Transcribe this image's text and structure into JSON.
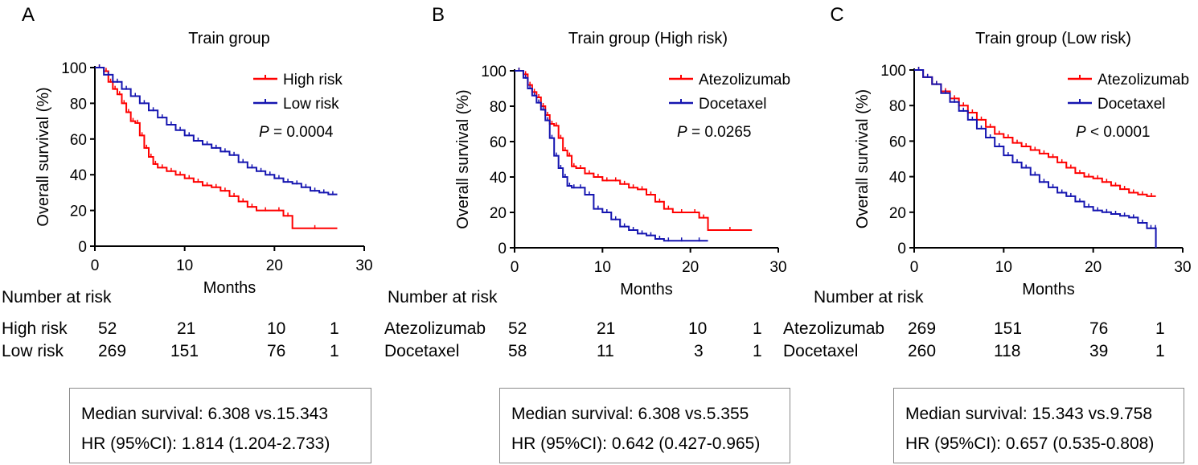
{
  "panels": [
    {
      "letter": "A",
      "chart_data": {
        "type": "line",
        "title": "Train group",
        "xlabel": "Months",
        "ylabel": "Overall survival (%)",
        "xlim": [
          0,
          30
        ],
        "ylim": [
          0,
          100
        ],
        "xticks": [
          0,
          10,
          20,
          30
        ],
        "yticks": [
          0,
          20,
          40,
          60,
          80,
          100
        ],
        "p_value": {
          "label": "P",
          "text": "= 0.0004"
        },
        "series": [
          {
            "name": "High risk",
            "color": "#ff0000",
            "x": [
              0,
              1,
              1.5,
              2,
              2.5,
              3,
              3.5,
              4,
              4.5,
              5,
              5.5,
              6,
              6.5,
              7,
              8,
              9,
              10,
              11,
              12,
              13,
              14,
              15,
              16,
              17,
              18,
              20,
              21,
              22,
              27
            ],
            "y": [
              100,
              98,
              92,
              88,
              85,
              80,
              75,
              70,
              69,
              62,
              55,
              50,
              46,
              44,
              42,
              40,
              38,
              36,
              34,
              33,
              31,
              28,
              25,
              22,
              20,
              20,
              17,
              10,
              10
            ]
          },
          {
            "name": "Low risk",
            "color": "#1515b0",
            "x": [
              0,
              1,
              2,
              3,
              4,
              5,
              6,
              7,
              8,
              9,
              10,
              11,
              12,
              13,
              14,
              15,
              16,
              17,
              18,
              19,
              20,
              21,
              22,
              23,
              24,
              25,
              26,
              27
            ],
            "y": [
              100,
              96,
              92,
              88,
              84,
              80,
              76,
              72,
              68,
              65,
              62,
              59,
              57,
              55,
              53,
              51,
              47,
              44,
              42,
              40,
              38,
              36,
              35,
              33,
              31,
              30,
              29,
              29
            ]
          }
        ]
      },
      "risk_table": {
        "heading": "Number at risk",
        "rows": [
          {
            "label": "High risk",
            "values": [
              "52",
              "21",
              "10",
              "1"
            ]
          },
          {
            "label": "Low risk",
            "values": [
              "269",
              "151",
              "76",
              "1"
            ]
          }
        ]
      },
      "summary": {
        "median": "Median survival: 6.308 vs.15.343",
        "hr": "HR (95%CI): 1.814 (1.204-2.733)"
      }
    },
    {
      "letter": "B",
      "chart_data": {
        "type": "line",
        "title": "Train group (High risk)",
        "xlabel": "Months",
        "ylabel": "Overall survival (%)",
        "xlim": [
          0,
          30
        ],
        "ylim": [
          0,
          100
        ],
        "xticks": [
          0,
          10,
          20,
          30
        ],
        "yticks": [
          0,
          20,
          40,
          60,
          80,
          100
        ],
        "p_value": {
          "label": "P",
          "text": "= 0.0265"
        },
        "series": [
          {
            "name": "Atezolizumab",
            "color": "#ff0000",
            "x": [
              0,
              1,
              1.5,
              2,
              2.5,
              3,
              3.5,
              4,
              4.5,
              5,
              5.5,
              6,
              6.5,
              7,
              8,
              9,
              10,
              11,
              12,
              13,
              14,
              15,
              16,
              17,
              18,
              20,
              21,
              22,
              27
            ],
            "y": [
              100,
              98,
              92,
              88,
              85,
              80,
              75,
              70,
              69,
              62,
              55,
              52,
              46,
              45,
              42,
              40,
              38,
              38,
              36,
              34,
              33,
              30,
              26,
              22,
              20,
              20,
              17,
              10,
              10
            ]
          },
          {
            "name": "Docetaxel",
            "color": "#1515b0",
            "x": [
              0,
              1,
              1.5,
              2,
              2.5,
              3,
              3.5,
              4,
              4.5,
              5,
              5.5,
              6,
              6.5,
              7,
              8,
              9,
              10,
              11,
              12,
              13,
              14,
              15,
              16,
              17,
              18,
              20,
              22
            ],
            "y": [
              100,
              96,
              90,
              86,
              82,
              78,
              72,
              62,
              52,
              45,
              40,
              35,
              34,
              34,
              30,
              22,
              20,
              16,
              12,
              10,
              8,
              7,
              5,
              4,
              4,
              4,
              4
            ]
          }
        ]
      },
      "risk_table": {
        "heading": "Number at risk",
        "rows": [
          {
            "label": "Atezolizumab",
            "values": [
              "52",
              "21",
              "10",
              "1"
            ]
          },
          {
            "label": "Docetaxel",
            "values": [
              "58",
              "11",
              "3",
              "1"
            ]
          }
        ]
      },
      "summary": {
        "median": "Median survival: 6.308 vs.5.355",
        "hr": "HR (95%CI): 0.642 (0.427-0.965)"
      }
    },
    {
      "letter": "C",
      "chart_data": {
        "type": "line",
        "title": "Train group (Low risk)",
        "xlabel": "Months",
        "ylabel": "Overall survival (%)",
        "xlim": [
          0,
          30
        ],
        "ylim": [
          0,
          100
        ],
        "xticks": [
          0,
          10,
          20,
          30
        ],
        "yticks": [
          0,
          20,
          40,
          60,
          80,
          100
        ],
        "p_value": {
          "label": "P",
          "text": "< 0.0001"
        },
        "series": [
          {
            "name": "Atezolizumab",
            "color": "#ff0000",
            "x": [
              0,
              1,
              2,
              3,
              4,
              5,
              6,
              7,
              8,
              9,
              10,
              11,
              12,
              13,
              14,
              15,
              16,
              17,
              18,
              19,
              20,
              21,
              22,
              23,
              24,
              25,
              26,
              27
            ],
            "y": [
              100,
              96,
              92,
              88,
              84,
              80,
              76,
              72,
              68,
              64,
              62,
              59,
              57,
              55,
              53,
              51,
              48,
              45,
              42,
              40,
              39,
              37,
              35,
              33,
              31,
              30,
              29,
              29
            ]
          },
          {
            "name": "Docetaxel",
            "color": "#1515b0",
            "x": [
              0,
              1,
              2,
              3,
              4,
              5,
              6,
              7,
              8,
              9,
              10,
              11,
              12,
              13,
              14,
              15,
              16,
              17,
              18,
              19,
              20,
              21,
              22,
              23,
              24,
              25,
              26,
              26.9,
              27
            ],
            "y": [
              100,
              96,
              92,
              87,
              82,
              77,
              72,
              67,
              62,
              57,
              52,
              48,
              45,
              41,
              37,
              34,
              31,
              29,
              26,
              23,
              21,
              20,
              19,
              18,
              17,
              14,
              11,
              11,
              0
            ]
          }
        ]
      },
      "risk_table": {
        "heading": "Number at risk",
        "rows": [
          {
            "label": "Atezolizumab",
            "values": [
              "269",
              "151",
              "76",
              "1"
            ]
          },
          {
            "label": "Docetaxel",
            "values": [
              "260",
              "118",
              "39",
              "1"
            ]
          }
        ]
      },
      "summary": {
        "median": "Median survival: 15.343 vs.9.758",
        "hr": "HR (95%CI): 0.657 (0.535-0.808)"
      }
    }
  ]
}
